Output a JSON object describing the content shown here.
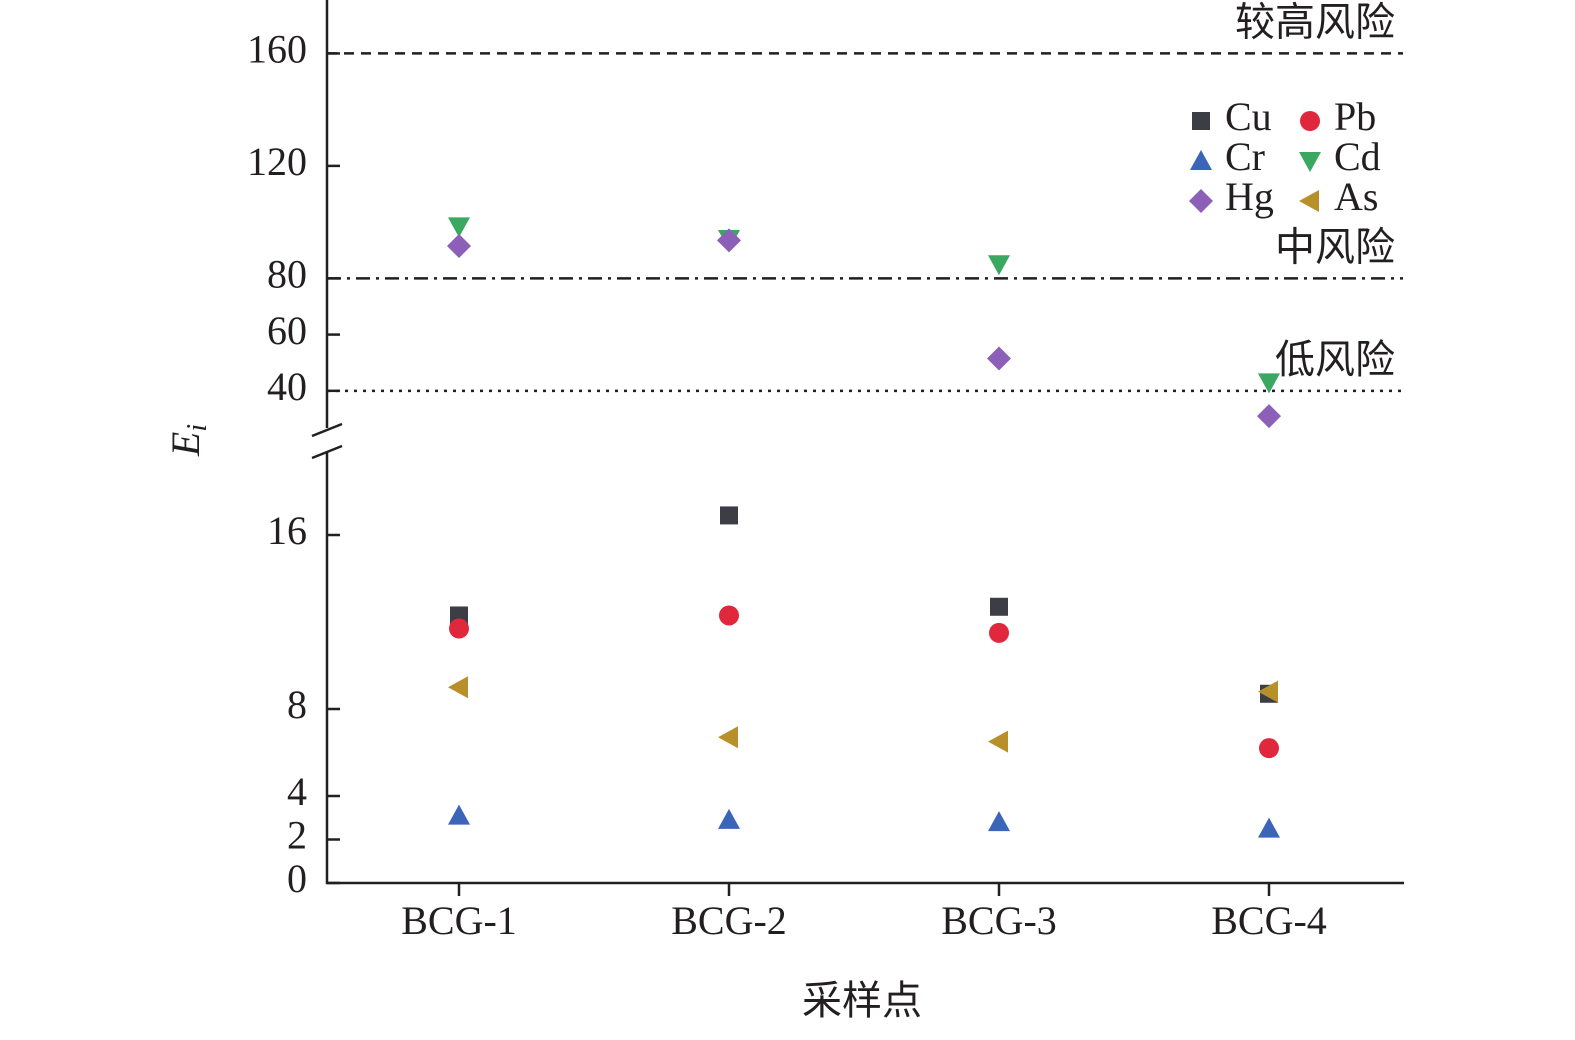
{
  "chart_data": {
    "type": "scatter",
    "x_label": "采样点",
    "y_label": "E",
    "y_label_subscript": "i",
    "categories": [
      "BCG-1",
      "BCG-2",
      "BCG-3",
      "BCG-4"
    ],
    "y_segments": [
      {
        "ylim": [
          0,
          20
        ],
        "yticks": [
          0,
          2,
          4,
          8,
          16
        ]
      },
      {
        "ylim": [
          25,
          179
        ],
        "yticks": [
          40,
          60,
          80,
          120,
          160
        ]
      }
    ],
    "reference_lines": [
      {
        "value": 160,
        "label": "较高风险",
        "style": "dashed"
      },
      {
        "value": 80,
        "label": "中风险",
        "style": "dashdot"
      },
      {
        "value": 40,
        "label": "低风险",
        "style": "dotted"
      }
    ],
    "series": [
      {
        "name": "Cu",
        "color": "#3d3d45",
        "marker": "square",
        "values": [
          12.3,
          16.9,
          12.7,
          8.7
        ]
      },
      {
        "name": "Pb",
        "color": "#e0283c",
        "marker": "circle",
        "values": [
          11.7,
          12.3,
          11.5,
          6.2
        ]
      },
      {
        "name": "Cr",
        "color": "#3a65b8",
        "marker": "triangle-up",
        "values": [
          3.1,
          2.9,
          2.8,
          2.5
        ]
      },
      {
        "name": "Cd",
        "color": "#3aa860",
        "marker": "triangle-down",
        "values": [
          98.5,
          94,
          85,
          43
        ]
      },
      {
        "name": "Hg",
        "color": "#8c5fb8",
        "marker": "diamond",
        "values": [
          91.5,
          93.5,
          51.5,
          31
        ]
      },
      {
        "name": "As",
        "color": "#b8902a",
        "marker": "triangle-left",
        "values": [
          9,
          6.7,
          6.5,
          8.8
        ]
      }
    ]
  }
}
